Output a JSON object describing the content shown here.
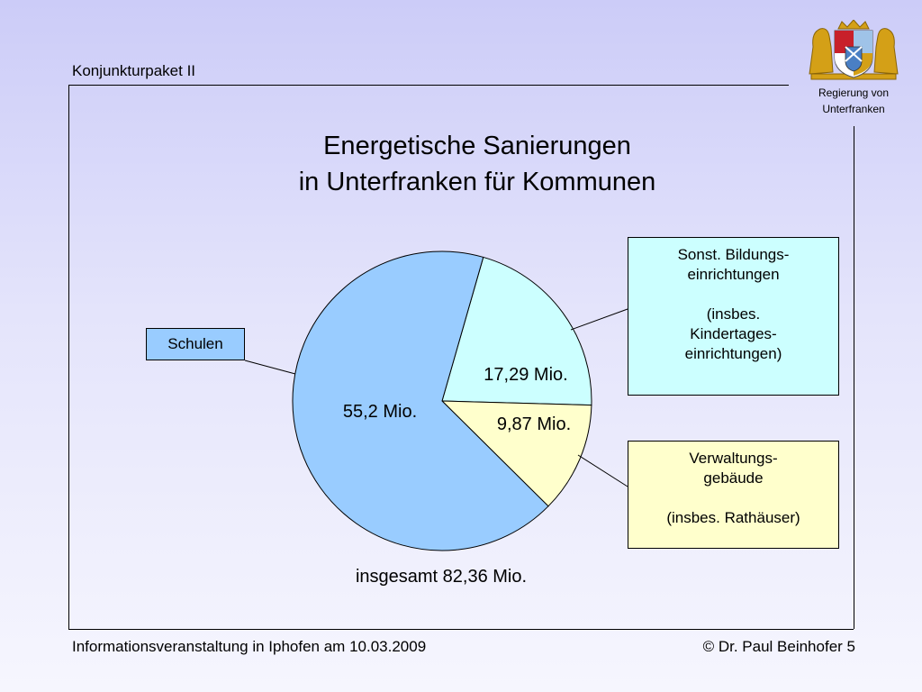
{
  "header": {
    "title": "Konjunkturpaket II"
  },
  "logo": {
    "caption_line1": "Regierung von",
    "caption_line2": "Unterfranken"
  },
  "footer": {
    "left": "Informationsveranstaltung in Iphofen am 10.03.2009",
    "right": "© Dr. Paul Beinhofer 5"
  },
  "colors": {
    "schulen": "#99ccff",
    "bildung": "#ccffff",
    "verwaltung": "#ffffcc"
  },
  "chart_data": {
    "type": "pie",
    "title_line1": "Energetische Sanierungen",
    "title_line2": "in Unterfranken für Kommunen",
    "total_label": "insgesamt 82,36 Mio.",
    "slices": [
      {
        "name": "Sonst. Bildungseinrichtungen",
        "value": 17.29,
        "label": "17,29 Mio.",
        "color": "#ccffff"
      },
      {
        "name": "Verwaltungsgebäude",
        "value": 9.87,
        "label": "9,87 Mio.",
        "color": "#ffffcc"
      },
      {
        "name": "Schulen",
        "value": 55.2,
        "label": "55,2 Mio.",
        "color": "#99ccff"
      }
    ],
    "callouts": {
      "schulen": "Schulen",
      "bildung_l1": "Sonst. Bildungs-",
      "bildung_l2": "einrichtungen",
      "bildung_l3": "(insbes.",
      "bildung_l4": "Kindertages-",
      "bildung_l5": "einrichtungen)",
      "verw_l1": "Verwaltungs-",
      "verw_l2": "gebäude",
      "verw_l3": "(insbes. Rathäuser)"
    }
  }
}
